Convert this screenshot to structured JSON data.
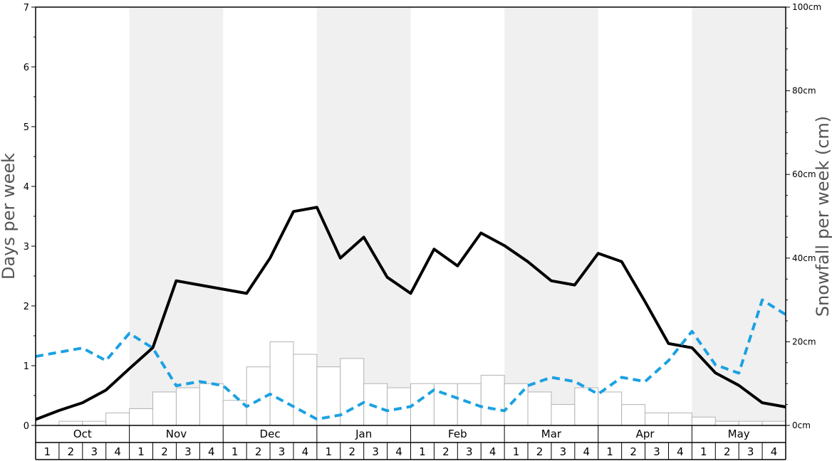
{
  "chart_data": {
    "type": "bar",
    "left_axis": {
      "title": "Days per week",
      "ylim": [
        0,
        7
      ],
      "ticks": [
        "0",
        "1",
        "2",
        "3",
        "4",
        "5",
        "6",
        "7"
      ]
    },
    "right_axis": {
      "title": "Snowfall per week (cm)",
      "ylim": [
        0,
        100
      ],
      "ticks": [
        "0cm",
        "20cm",
        "40cm",
        "60cm",
        "80cm",
        "100cm"
      ]
    },
    "months": [
      "Oct",
      "Nov",
      "Dec",
      "Jan",
      "Feb",
      "Mar",
      "Apr",
      "May"
    ],
    "week_labels": [
      "1",
      "2",
      "3",
      "4"
    ],
    "series": [
      {
        "kind": "bar",
        "axis": "left",
        "values": [
          0.0,
          0.07,
          0.07,
          0.21,
          0.28,
          0.56,
          0.63,
          0.7,
          0.42,
          0.98,
          1.4,
          1.19,
          0.98,
          1.12,
          0.7,
          0.63,
          0.7,
          0.7,
          0.7,
          0.84,
          0.7,
          0.56,
          0.35,
          0.63,
          0.56,
          0.35,
          0.21,
          0.21,
          0.14,
          0.07,
          0.07,
          0.07
        ]
      },
      {
        "kind": "line",
        "axis": "left",
        "style": "solid",
        "color": "#000000",
        "values": [
          0.1,
          0.25,
          0.38,
          0.59,
          0.95,
          1.3,
          2.42,
          2.35,
          2.28,
          2.21,
          2.8,
          3.58,
          3.65,
          2.8,
          3.15,
          2.48,
          2.21,
          2.95,
          2.67,
          3.22,
          3.01,
          2.74,
          2.42,
          2.35,
          2.88,
          2.74,
          2.07,
          1.37,
          1.3,
          0.88,
          0.67,
          0.38,
          0.31
        ]
      },
      {
        "kind": "line",
        "axis": "right",
        "style": "dashed",
        "color": "#1ba1e2",
        "values": [
          16.5,
          17.5,
          18.5,
          15.5,
          22.0,
          18.5,
          9.5,
          10.5,
          9.5,
          4.5,
          7.5,
          4.5,
          1.5,
          2.5,
          5.5,
          3.5,
          4.5,
          8.5,
          6.5,
          4.5,
          3.5,
          9.5,
          11.5,
          10.5,
          7.5,
          11.5,
          10.5,
          15.5,
          22.5,
          14.5,
          12.5,
          30.0,
          26.5
        ]
      }
    ],
    "colors": {
      "shade": "#f0f0f0",
      "bar_fill": "#ffffff",
      "bar_stroke": "#b3b3b3",
      "solid_line": "#000000",
      "dashed_line": "#1ba1e2"
    }
  }
}
